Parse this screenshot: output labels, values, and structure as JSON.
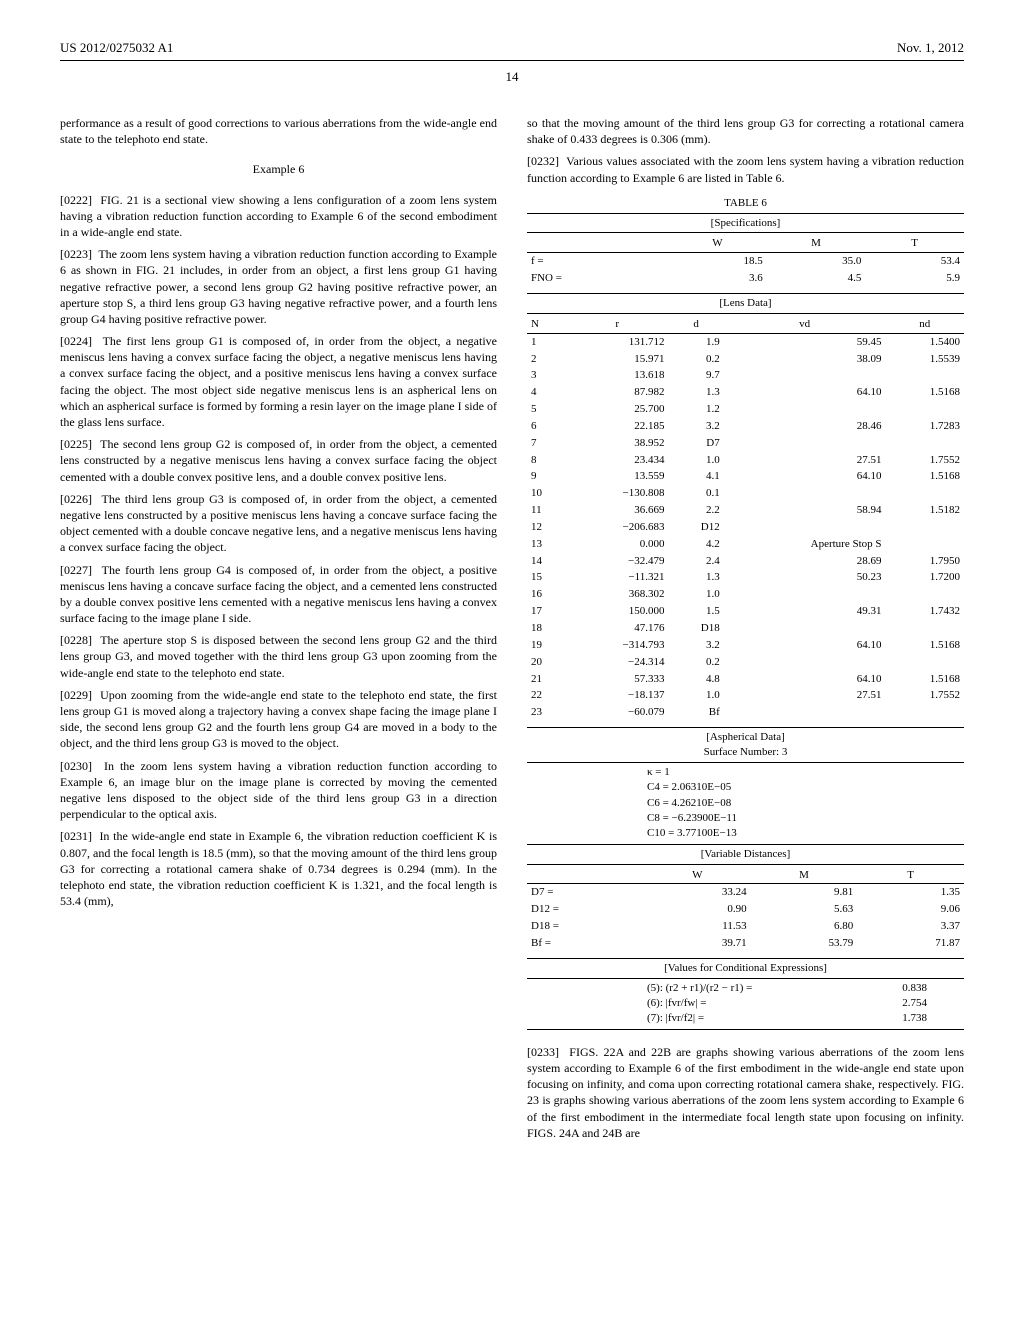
{
  "header": {
    "pub_number": "US 2012/0275032 A1",
    "date": "Nov. 1, 2012"
  },
  "page_number": "14",
  "left_column": {
    "p_intro": "performance as a result of good corrections to various aberrations from the wide-angle end state to the telephoto end state.",
    "example_title": "Example 6",
    "p0222_num": "[0222]",
    "p0222": "FIG. 21 is a sectional view showing a lens configuration of a zoom lens system having a vibration reduction function according to Example 6 of the second embodiment in a wide-angle end state.",
    "p0223_num": "[0223]",
    "p0223": "The zoom lens system having a vibration reduction function according to Example 6 as shown in FIG. 21 includes, in order from an object, a first lens group G1 having negative refractive power, a second lens group G2 having positive refractive power, an aperture stop S, a third lens group G3 having negative refractive power, and a fourth lens group G4 having positive refractive power.",
    "p0224_num": "[0224]",
    "p0224": "The first lens group G1 is composed of, in order from the object, a negative meniscus lens having a convex surface facing the object, a negative meniscus lens having a convex surface facing the object, and a positive meniscus lens having a convex surface facing the object. The most object side negative meniscus lens is an aspherical lens on which an aspherical surface is formed by forming a resin layer on the image plane I side of the glass lens surface.",
    "p0225_num": "[0225]",
    "p0225": "The second lens group G2 is composed of, in order from the object, a cemented lens constructed by a negative meniscus lens having a convex surface facing the object cemented with a double convex positive lens, and a double convex positive lens.",
    "p0226_num": "[0226]",
    "p0226": "The third lens group G3 is composed of, in order from the object, a cemented negative lens constructed by a positive meniscus lens having a concave surface facing the object cemented with a double concave negative lens, and a negative meniscus lens having a convex surface facing the object.",
    "p0227_num": "[0227]",
    "p0227": "The fourth lens group G4 is composed of, in order from the object, a positive meniscus lens having a concave surface facing the object, and a cemented lens constructed by a double convex positive lens cemented with a negative meniscus lens having a convex surface facing to the image plane I side.",
    "p0228_num": "[0228]",
    "p0228": "The aperture stop S is disposed between the second lens group G2 and the third lens group G3, and moved together with the third lens group G3 upon zooming from the wide-angle end state to the telephoto end state.",
    "p0229_num": "[0229]",
    "p0229": "Upon zooming from the wide-angle end state to the telephoto end state, the first lens group G1 is moved along a trajectory having a convex shape facing the image plane I side, the second lens group G2 and the fourth lens group G4 are moved in a body to the object, and the third lens group G3 is moved to the object.",
    "p0230_num": "[0230]",
    "p0230": "In the zoom lens system having a vibration reduction function according to Example 6, an image blur on the image plane is corrected by moving the cemented negative lens disposed to the object side of the third lens group G3 in a direction perpendicular to the optical axis.",
    "p0231_num": "[0231]",
    "p0231": "In the wide-angle end state in Example 6, the vibration reduction coefficient K is 0.807, and the focal length is 18.5 (mm), so that the moving amount of the third lens group G3 for correcting a rotational camera shake of 0.734 degrees is 0.294 (mm). In the telephoto end state, the vibration reduction coefficient K is 1.321, and the focal length is 53.4 (mm),"
  },
  "right_column": {
    "p_top": "so that the moving amount of the third lens group G3 for correcting a rotational camera shake of 0.433 degrees is 0.306 (mm).",
    "p0232_num": "[0232]",
    "p0232": "Various values associated with the zoom lens system having a vibration reduction function according to Example 6 are listed in Table 6.",
    "table_title": "TABLE 6",
    "specs_label": "[Specifications]",
    "specs": {
      "cols": [
        "",
        "W",
        "M",
        "T"
      ],
      "rows": [
        [
          "f =",
          "18.5",
          "35.0",
          "53.4"
        ],
        [
          "FNO =",
          "3.6",
          "4.5",
          "5.9"
        ]
      ]
    },
    "lens_label": "[Lens Data]",
    "lens": {
      "cols": [
        "N",
        "r",
        "d",
        "vd",
        "nd"
      ],
      "rows": [
        [
          "1",
          "131.712",
          "1.9",
          "59.45",
          "1.5400"
        ],
        [
          "2",
          "15.971",
          "0.2",
          "38.09",
          "1.5539"
        ],
        [
          "3",
          "13.618",
          "9.7",
          "",
          ""
        ],
        [
          "4",
          "87.982",
          "1.3",
          "64.10",
          "1.5168"
        ],
        [
          "5",
          "25.700",
          "1.2",
          "",
          ""
        ],
        [
          "6",
          "22.185",
          "3.2",
          "28.46",
          "1.7283"
        ],
        [
          "7",
          "38.952",
          "D7",
          "",
          ""
        ],
        [
          "8",
          "23.434",
          "1.0",
          "27.51",
          "1.7552"
        ],
        [
          "9",
          "13.559",
          "4.1",
          "64.10",
          "1.5168"
        ],
        [
          "10",
          "−130.808",
          "0.1",
          "",
          ""
        ],
        [
          "11",
          "36.669",
          "2.2",
          "58.94",
          "1.5182"
        ],
        [
          "12",
          "−206.683",
          "D12",
          "",
          ""
        ],
        [
          "13",
          "0.000",
          "4.2",
          "Aperture Stop S",
          ""
        ],
        [
          "14",
          "−32.479",
          "2.4",
          "28.69",
          "1.7950"
        ],
        [
          "15",
          "−11.321",
          "1.3",
          "50.23",
          "1.7200"
        ],
        [
          "16",
          "368.302",
          "1.0",
          "",
          ""
        ],
        [
          "17",
          "150.000",
          "1.5",
          "49.31",
          "1.7432"
        ],
        [
          "18",
          "47.176",
          "D18",
          "",
          ""
        ],
        [
          "19",
          "−314.793",
          "3.2",
          "64.10",
          "1.5168"
        ],
        [
          "20",
          "−24.314",
          "0.2",
          "",
          ""
        ],
        [
          "21",
          "57.333",
          "4.8",
          "64.10",
          "1.5168"
        ],
        [
          "22",
          "−18.137",
          "1.0",
          "27.51",
          "1.7552"
        ],
        [
          "23",
          "−60.079",
          "Bf",
          "",
          ""
        ]
      ]
    },
    "aspherical_label": "[Aspherical Data]",
    "aspherical_surface": "Surface Number: 3",
    "aspherical": [
      "κ = 1",
      "C4 = 2.06310E−05",
      "C6 = 4.26210E−08",
      "C8 = −6.23900E−11",
      "C10 = 3.77100E−13"
    ],
    "vardist_label": "[Variable Distances]",
    "vardist": {
      "cols": [
        "",
        "W",
        "M",
        "T"
      ],
      "rows": [
        [
          "D7 =",
          "33.24",
          "9.81",
          "1.35"
        ],
        [
          "D12 =",
          "0.90",
          "5.63",
          "9.06"
        ],
        [
          "D18 =",
          "11.53",
          "6.80",
          "3.37"
        ],
        [
          "Bf =",
          "39.71",
          "53.79",
          "71.87"
        ]
      ]
    },
    "cond_label": "[Values for Conditional Expressions]",
    "cond": [
      {
        "expr": "(5): (r2 + r1)/(r2 − r1) =",
        "val": "0.838"
      },
      {
        "expr": "(6): |fvr/fw| =",
        "val": "2.754"
      },
      {
        "expr": "(7): |fvr/f2| =",
        "val": "1.738"
      }
    ],
    "p0233_num": "[0233]",
    "p0233": "FIGS. 22A and 22B are graphs showing various aberrations of the zoom lens system according to Example 6 of the first embodiment in the wide-angle end state upon focusing on infinity, and coma upon correcting rotational camera shake, respectively. FIG. 23 is graphs showing various aberrations of the zoom lens system according to Example 6 of the first embodiment in the intermediate focal length state upon focusing on infinity. FIGS. 24A and 24B are"
  }
}
